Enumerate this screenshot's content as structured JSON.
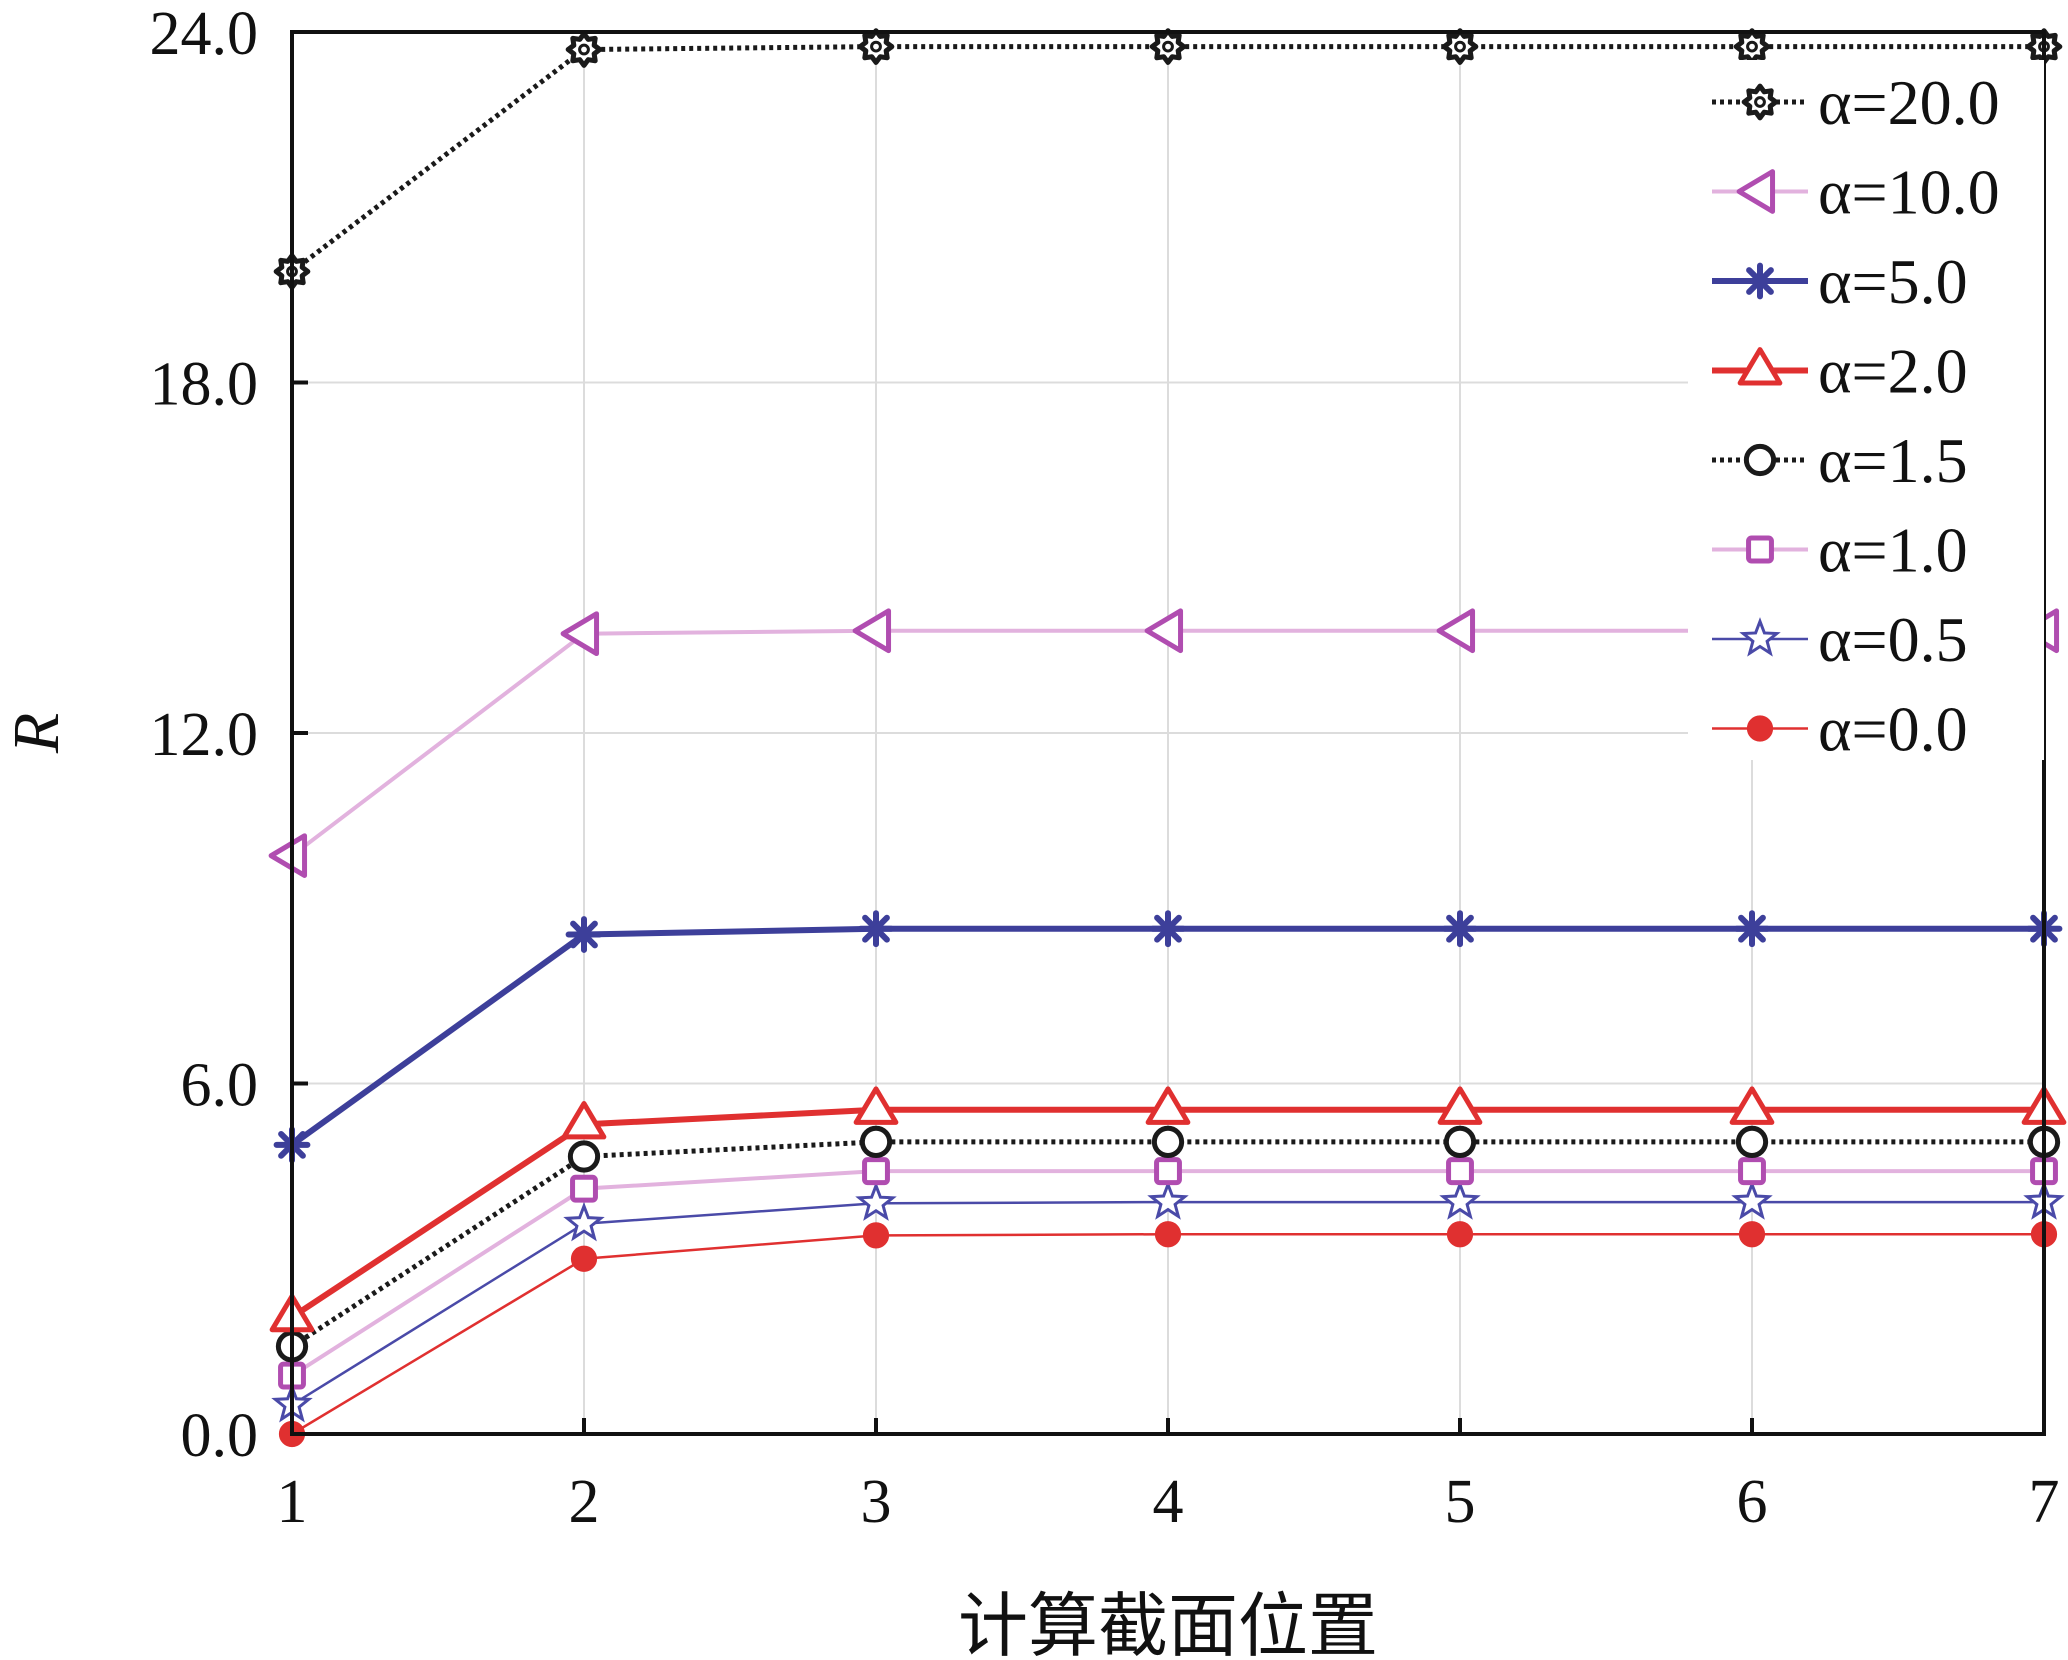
{
  "chart_data": {
    "type": "line",
    "title": "",
    "xlabel": "计算截面位置",
    "ylabel": "R",
    "x": [
      1,
      2,
      3,
      4,
      5,
      6,
      7
    ],
    "xlim": [
      1,
      7
    ],
    "ylim": [
      0,
      24
    ],
    "yticks": [
      "0.0",
      "6.0",
      "12.0",
      "18.0",
      "24.0"
    ],
    "ytick_values": [
      0,
      6,
      12,
      18,
      24
    ],
    "xticks": [
      "1",
      "2",
      "3",
      "4",
      "5",
      "6",
      "7"
    ],
    "grid": true,
    "legend_position": "top-right",
    "series": [
      {
        "name": "α=20.0",
        "color": "#1a1a1a",
        "dash": "dotted",
        "marker": "gear",
        "values": [
          19.9,
          23.7,
          23.75,
          23.75,
          23.75,
          23.75,
          23.75
        ]
      },
      {
        "name": "α=10.0",
        "color": "#b04db0",
        "line_color": "#e2b2de",
        "dash": "solid",
        "marker": "triangle-left",
        "values": [
          9.9,
          13.7,
          13.75,
          13.75,
          13.75,
          13.75,
          13.75
        ]
      },
      {
        "name": "α=5.0",
        "color": "#3d3f9a",
        "dash": "solid",
        "marker": "asterisk",
        "values": [
          4.95,
          8.55,
          8.65,
          8.65,
          8.65,
          8.65,
          8.65
        ]
      },
      {
        "name": "α=2.0",
        "color": "#e03030",
        "dash": "solid",
        "marker": "triangle-up",
        "values": [
          2.0,
          5.3,
          5.55,
          5.55,
          5.55,
          5.55,
          5.55
        ]
      },
      {
        "name": "α=1.5",
        "color": "#1a1a1a",
        "dash": "dotted",
        "marker": "circle",
        "values": [
          1.5,
          4.75,
          5.0,
          5.0,
          5.0,
          5.0,
          5.0
        ]
      },
      {
        "name": "α=1.0",
        "color": "#b04db0",
        "line_color": "#e2b2de",
        "dash": "solid",
        "marker": "square",
        "values": [
          1.0,
          4.2,
          4.5,
          4.5,
          4.5,
          4.5,
          4.5
        ]
      },
      {
        "name": "α=0.5",
        "color": "#4a4aa8",
        "dash": "solid",
        "marker": "star",
        "values": [
          0.5,
          3.6,
          3.95,
          3.97,
          3.97,
          3.97,
          3.97
        ]
      },
      {
        "name": "α=0.0",
        "color": "#e03030",
        "dash": "solid",
        "marker": "filled-circle",
        "values": [
          0.0,
          3.0,
          3.4,
          3.42,
          3.42,
          3.42,
          3.42
        ]
      }
    ]
  }
}
